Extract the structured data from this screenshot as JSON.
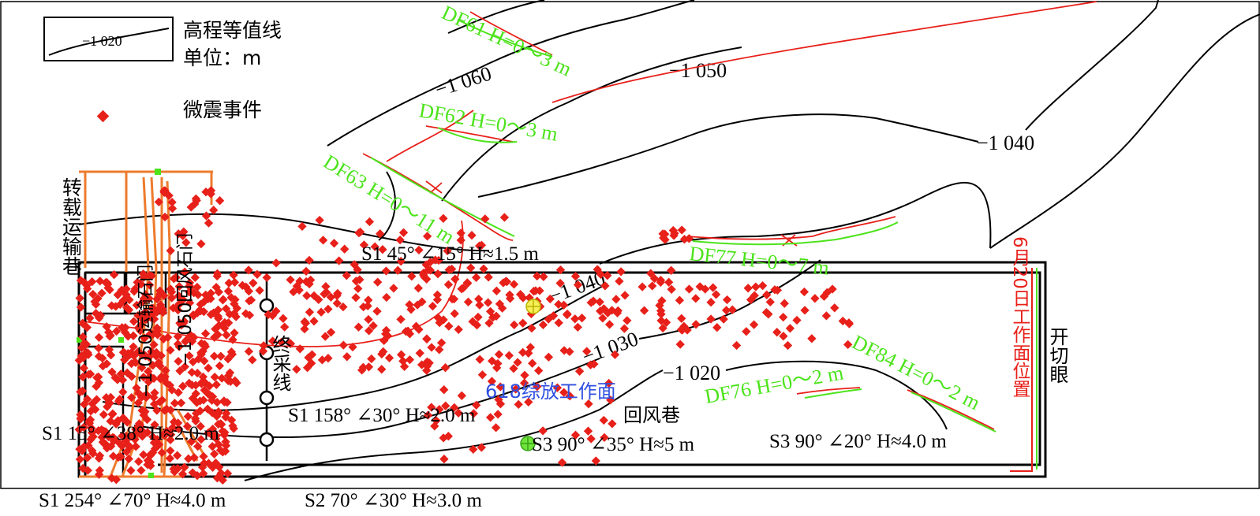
{
  "legend": {
    "contour_sample": "−1 020",
    "contour_label": "高程等值线",
    "unit_label": "单位：m",
    "event_label": "微震事件",
    "colors": {
      "event": "#e8201a",
      "contour": "#000000"
    }
  },
  "contours": [
    {
      "label": "−1 060"
    },
    {
      "label": "−1 050"
    },
    {
      "label": "−1 040"
    },
    {
      "label": "−1 040"
    },
    {
      "label": "−1 030"
    },
    {
      "label": "−1 020"
    }
  ],
  "faults": [
    {
      "label": "DF61 H=0～3 m"
    },
    {
      "label": "DF62 H=0～3 m"
    },
    {
      "label": "DF63 H=0～11 m"
    },
    {
      "label": "DF77 H=0～7 m"
    },
    {
      "label": "DF76 H=0～2 m"
    },
    {
      "label": "DF84 H=0～2 m"
    }
  ],
  "structures": [
    {
      "label": "S1 45° ∠15° H≈1.5 m"
    },
    {
      "label": "S1 158° ∠30° H≈2.0 m"
    },
    {
      "label": "S1 15° ∠38° H≈2.0 m"
    },
    {
      "label": "S3 90° ∠35° H≈5 m"
    },
    {
      "label": "S3 90° ∠20° H≈4.0 m"
    },
    {
      "label": "S1 254° ∠70° H≈4.0 m"
    },
    {
      "label": "S2 70° ∠30° H≈3.0 m"
    }
  ],
  "roadways": {
    "transfer": "转载运输巷",
    "transport": "−1 050运输石门",
    "return_crosscut": "−1 050回风石门",
    "stop_line": "终采线",
    "face": "618综放工作面",
    "return_roadway": "回风巷",
    "face_position": "6月20日工作面位置",
    "open_cut": "开切眼"
  },
  "colors": {
    "fault": "#4ce31b",
    "fault_trace": "#e8201a",
    "roadway": "#ee7b2d",
    "panel": "#000000",
    "face_label": "#2f4fe0"
  }
}
